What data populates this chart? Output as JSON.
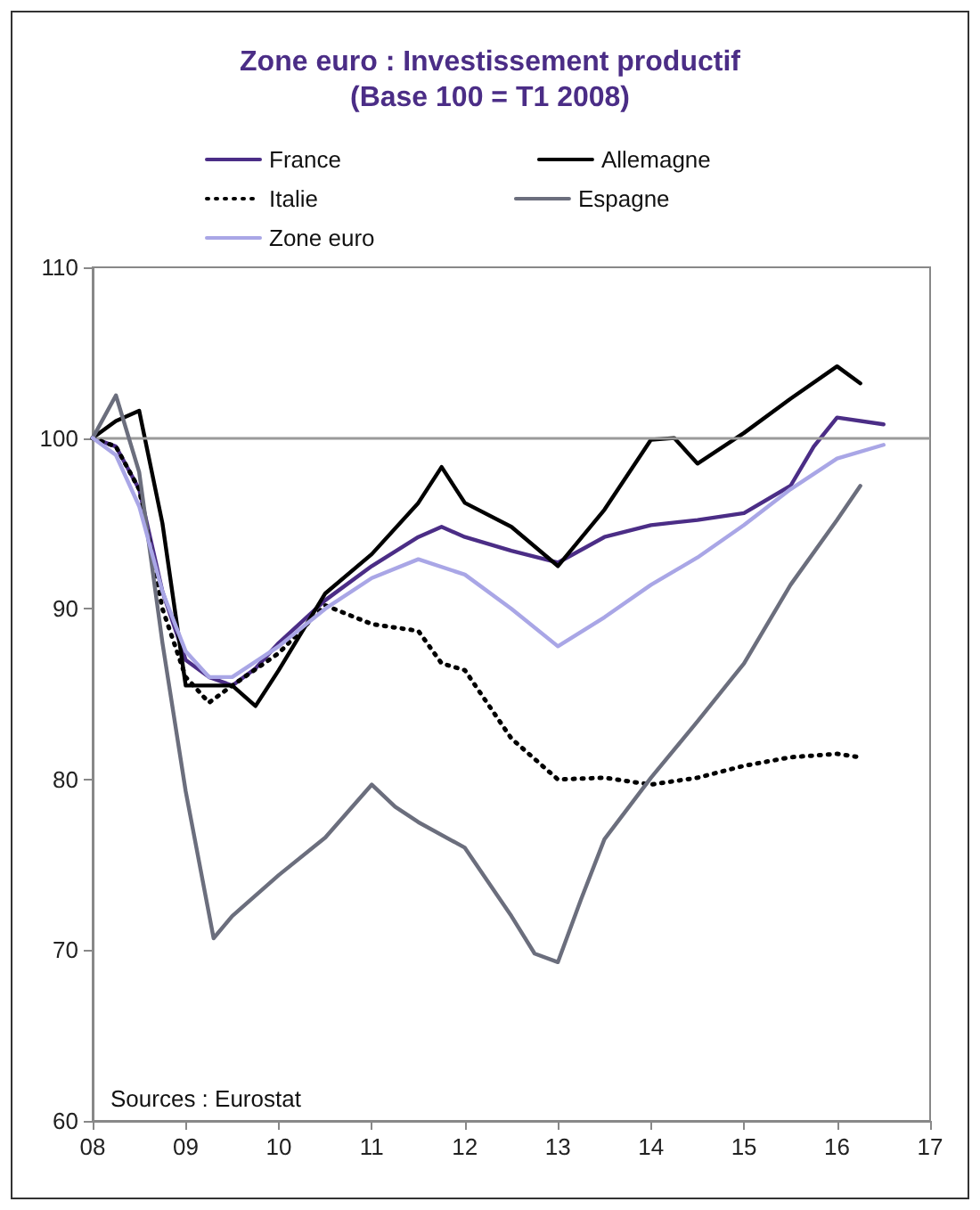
{
  "chart_data": {
    "type": "line",
    "title": "Zone euro : Investissement productif",
    "subtitle": "(Base 100 = T1 2008)",
    "series": [
      {
        "name": "France",
        "color": "#4b2d86",
        "line_style": "solid",
        "x": [
          8,
          8.25,
          8.5,
          8.75,
          9,
          9.25,
          9.5,
          9.75,
          10,
          10.5,
          11,
          11.5,
          11.75,
          12,
          12.5,
          13,
          13.5,
          14,
          14.5,
          15,
          15.5,
          15.75,
          16,
          16.5
        ],
        "values": [
          100,
          99.5,
          97,
          91,
          87,
          86,
          85.5,
          86.5,
          88,
          90.5,
          92.5,
          94.2,
          94.8,
          94.2,
          93.4,
          92.7,
          94.2,
          94.9,
          95.2,
          95.6,
          97.2,
          99.5,
          101.2,
          100.8
        ]
      },
      {
        "name": "Allemagne",
        "color": "#000000",
        "line_style": "solid",
        "x": [
          8,
          8.25,
          8.5,
          8.75,
          9,
          9.5,
          9.75,
          10,
          10.5,
          11,
          11.5,
          11.75,
          12,
          12.5,
          13,
          13.5,
          14,
          14.25,
          14.5,
          15,
          15.5,
          16,
          16.25
        ],
        "values": [
          100,
          101,
          101.6,
          95,
          85.5,
          85.5,
          84.3,
          86.4,
          90.9,
          93.2,
          96.2,
          98.3,
          96.2,
          94.8,
          92.5,
          95.8,
          99.9,
          100,
          98.5,
          100.3,
          102.3,
          104.2,
          103.2
        ]
      },
      {
        "name": "Italie",
        "color": "#000000",
        "line_style": "dotted",
        "x": [
          8,
          8.25,
          8.5,
          8.75,
          9,
          9.25,
          9.5,
          10,
          10.5,
          11,
          11.5,
          11.75,
          12,
          12.5,
          13,
          13.5,
          14,
          14.5,
          15,
          15.5,
          16,
          16.25
        ],
        "values": [
          100,
          99.5,
          97,
          90,
          86,
          84.5,
          85.5,
          87.4,
          90.2,
          89.1,
          88.7,
          86.8,
          86.4,
          82.4,
          80,
          80.1,
          79.7,
          80.1,
          80.8,
          81.3,
          81.5,
          81.3
        ]
      },
      {
        "name": "Espagne",
        "color": "#6b6e7d",
        "line_style": "solid",
        "x": [
          8,
          8.25,
          8.5,
          8.75,
          9,
          9.3,
          9.5,
          10,
          10.5,
          11,
          11.25,
          11.5,
          12,
          12.5,
          12.75,
          13,
          13.25,
          13.5,
          14,
          14.5,
          15,
          15.5,
          16,
          16.25
        ],
        "values": [
          100,
          102.5,
          98,
          88,
          79.3,
          70.7,
          72,
          74.4,
          76.6,
          79.7,
          78.4,
          77.5,
          76,
          72,
          69.8,
          69.3,
          73,
          76.5,
          80.1,
          83.4,
          86.8,
          91.4,
          95.2,
          97.2
        ]
      },
      {
        "name": "Zone euro",
        "color": "#a9a6e6",
        "line_style": "solid",
        "x": [
          8,
          8.25,
          8.5,
          8.75,
          9,
          9.25,
          9.5,
          10,
          10.5,
          11,
          11.5,
          12,
          12.5,
          13,
          13.5,
          14,
          14.5,
          15,
          15.5,
          16,
          16.5
        ],
        "values": [
          100,
          99,
          96,
          91,
          87.5,
          86,
          86,
          87.8,
          90,
          91.8,
          92.9,
          92,
          90,
          87.8,
          89.5,
          91.4,
          93,
          94.9,
          97,
          98.8,
          99.6
        ]
      }
    ],
    "xlim": [
      8,
      17
    ],
    "xticks": [
      {
        "value": 8,
        "label": "08"
      },
      {
        "value": 9,
        "label": "09"
      },
      10,
      11,
      12,
      13,
      14,
      15,
      16,
      17
    ],
    "ylim": [
      60,
      110
    ],
    "yticks": [
      60,
      70,
      80,
      90,
      100,
      110
    ],
    "ref_lines": [
      {
        "axis": "y",
        "value": 100,
        "color": "#9a9a9a"
      }
    ],
    "grid": false,
    "legend": "top",
    "marker": "none",
    "annotations": [
      "Sources : Eurostat"
    ]
  }
}
